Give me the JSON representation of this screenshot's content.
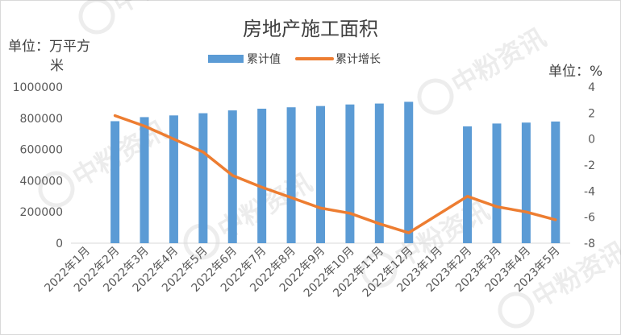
{
  "chart_data": {
    "type": "bar-line",
    "title": "房地产施工面积",
    "left_unit_label": "单位：万平方米",
    "right_unit_label": "单位：%",
    "categories": [
      "2022年1月",
      "2022年2月",
      "2022年3月",
      "2022年4月",
      "2022年5月",
      "2022年6月",
      "2022年7月",
      "2022年8月",
      "2022年9月",
      "2022年10月",
      "2022年11月",
      "2022年12月",
      "2023年1月",
      "2023年2月",
      "2023年3月",
      "2023年4月",
      "2023年5月"
    ],
    "series": [
      {
        "name": "累计值",
        "type": "bar",
        "axis": "left",
        "color": "#5b9bd5",
        "values": [
          null,
          781000,
          807000,
          818000,
          832000,
          850000,
          861000,
          870000,
          878000,
          888000,
          894000,
          905000,
          null,
          748000,
          766000,
          772000,
          779000
        ]
      },
      {
        "name": "累计增长",
        "type": "line",
        "axis": "right",
        "color": "#ed7d31",
        "values": [
          null,
          1.8,
          1.0,
          0.0,
          -1.0,
          -2.8,
          -3.7,
          -4.5,
          -5.3,
          -5.7,
          -6.5,
          -7.2,
          null,
          -4.4,
          -5.2,
          -5.6,
          -6.2
        ]
      }
    ],
    "left_axis": {
      "min": 0,
      "max": 1000000,
      "ticks": [
        "1000000",
        "800000",
        "600000",
        "400000",
        "200000",
        "0"
      ]
    },
    "right_axis": {
      "min": -8,
      "max": 4,
      "ticks": [
        "4",
        "2",
        "0",
        "-2",
        "-4",
        "-6",
        "-8"
      ]
    },
    "legend_position": "top",
    "grid": false,
    "watermark": "中粉资讯"
  }
}
